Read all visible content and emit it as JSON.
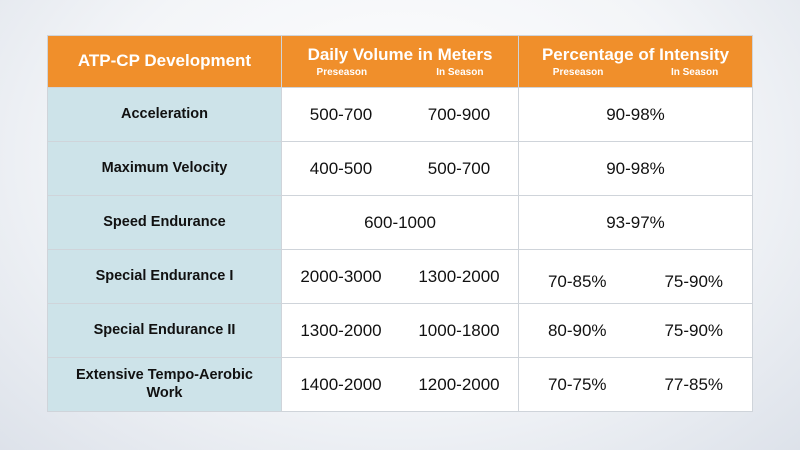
{
  "header": {
    "col1": "ATP-CP Development",
    "col2": "Daily Volume in Meters",
    "col3": "Percentage of Intensity",
    "col2_sub": [
      "Preseason",
      "In Season"
    ],
    "col3_sub": [
      "Preseason",
      "In Season"
    ]
  },
  "rows": [
    {
      "label": "Acceleration",
      "volume": [
        "500-700",
        "700-900"
      ],
      "intensity": [
        "90-98%"
      ]
    },
    {
      "label": "Maximum Velocity",
      "volume": [
        "400-500",
        "500-700"
      ],
      "intensity": [
        "90-98%"
      ]
    },
    {
      "label": "Speed Endurance",
      "volume": [
        "600-1000"
      ],
      "intensity": [
        "93-97%"
      ]
    },
    {
      "label": "Special Endurance I",
      "volume": [
        "2000-3000",
        "1300-2000"
      ],
      "intensity": [
        "70-85%",
        "75-90%"
      ]
    },
    {
      "label": "Special Endurance II",
      "volume": [
        "1300-2000",
        "1000-1800"
      ],
      "intensity": [
        "80-90%",
        "75-90%"
      ]
    },
    {
      "label": "Extensive Tempo-Aerobic Work",
      "volume": [
        "1400-2000",
        "1200-2000"
      ],
      "intensity": [
        "70-75%",
        "77-85%"
      ]
    }
  ],
  "colors": {
    "header": "#f08f2b",
    "label_bg": "#cde3e9"
  }
}
